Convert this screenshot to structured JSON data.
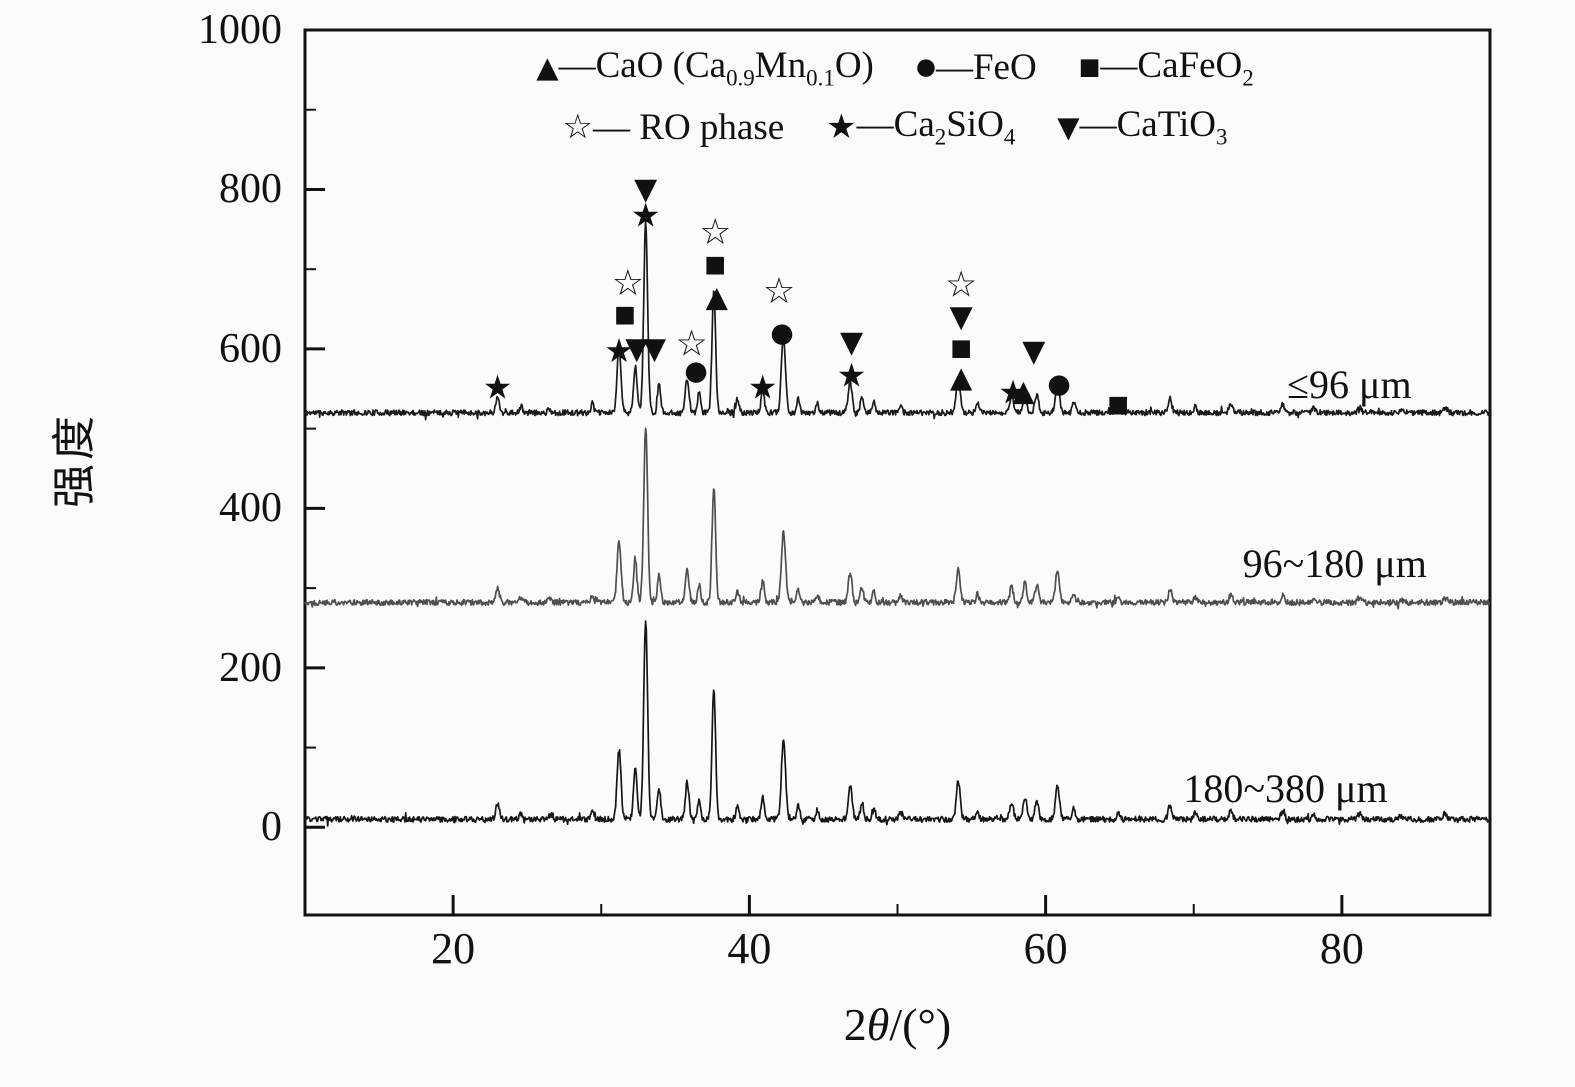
{
  "chart_data": {
    "type": "line",
    "title": "",
    "xlabel_parts": [
      "2",
      "θ",
      "/(°)"
    ],
    "ylabel": "强度",
    "xlim": [
      10,
      90
    ],
    "ylim": [
      -110,
      1000
    ],
    "x_major_ticks": [
      20,
      40,
      60,
      80
    ],
    "x_minor_ticks": [
      30,
      50,
      70
    ],
    "y_major_ticks": [
      0,
      200,
      400,
      600,
      800,
      1000
    ],
    "y_minor_ticks": [
      100,
      300,
      500,
      700,
      900
    ],
    "grid": false,
    "legend_position": "top-center",
    "legend": {
      "rows": [
        [
          {
            "marker": "▲",
            "label": "—CaO (Ca_{0.9}Mn_{0.1}O)"
          },
          {
            "marker": "●",
            "label": "—FeO"
          },
          {
            "marker": "■",
            "label": "—CaFeO_{2}"
          }
        ],
        [
          {
            "marker": "☆",
            "label": "— RO phase"
          },
          {
            "marker": "★",
            "label": "—Ca_{2}SiO_{4}"
          },
          {
            "marker": "▼",
            "label": "—CaTiO_{3}"
          }
        ]
      ]
    },
    "series": [
      {
        "name": "≤96 μm",
        "baseline": 520,
        "scale": 0.95,
        "color": "#1b1b1b",
        "seed": 11,
        "label_x": 76.3,
        "label_y": 555
      },
      {
        "name": "96~180 μm",
        "baseline": 282,
        "scale": 0.88,
        "color": "#4f4f4f",
        "seed": 22,
        "label_x": 73.3,
        "label_y": 330
      },
      {
        "name": "180~380 μm",
        "baseline": 10,
        "scale": 1.0,
        "color": "#161616",
        "seed": 33,
        "label_x": 69.3,
        "label_y": 48
      }
    ],
    "peaks_2theta_height_width": [
      [
        23.0,
        20,
        0.12
      ],
      [
        24.6,
        8,
        0.1
      ],
      [
        26.5,
        5,
        0.1
      ],
      [
        29.4,
        12,
        0.1
      ],
      [
        31.2,
        88,
        0.13
      ],
      [
        32.3,
        62,
        0.12
      ],
      [
        33.0,
        250,
        0.13
      ],
      [
        33.9,
        38,
        0.11
      ],
      [
        35.8,
        46,
        0.12
      ],
      [
        36.6,
        26,
        0.1
      ],
      [
        37.6,
        165,
        0.12
      ],
      [
        39.2,
        18,
        0.1
      ],
      [
        40.9,
        28,
        0.11
      ],
      [
        42.3,
        100,
        0.14
      ],
      [
        43.3,
        18,
        0.1
      ],
      [
        44.6,
        12,
        0.1
      ],
      [
        46.8,
        42,
        0.13
      ],
      [
        47.6,
        22,
        0.1
      ],
      [
        48.4,
        16,
        0.1
      ],
      [
        50.2,
        10,
        0.1
      ],
      [
        54.1,
        48,
        0.13
      ],
      [
        55.4,
        12,
        0.1
      ],
      [
        57.7,
        22,
        0.12
      ],
      [
        58.6,
        28,
        0.12
      ],
      [
        59.4,
        24,
        0.12
      ],
      [
        60.8,
        42,
        0.13
      ],
      [
        61.9,
        14,
        0.1
      ],
      [
        64.9,
        10,
        0.1
      ],
      [
        68.4,
        18,
        0.12
      ],
      [
        70.1,
        8,
        0.1
      ],
      [
        72.5,
        10,
        0.12
      ],
      [
        76.0,
        10,
        0.12
      ],
      [
        78.1,
        6,
        0.1
      ],
      [
        81.2,
        7,
        0.12
      ],
      [
        84.0,
        5,
        0.1
      ],
      [
        87.0,
        6,
        0.12
      ]
    ],
    "symbols": {
      "tri-up": "▲",
      "tri-down": "▼",
      "circle": "●",
      "square": "■",
      "star-open": "☆",
      "star-filled": "★"
    },
    "annotations": [
      [
        23.0,
        552,
        "star-filled"
      ],
      [
        31.2,
        598,
        "star-filled"
      ],
      [
        31.6,
        643,
        "square"
      ],
      [
        31.8,
        682,
        "star-open"
      ],
      [
        32.4,
        600,
        "tri-down"
      ],
      [
        33.0,
        800,
        "tri-down"
      ],
      [
        33.0,
        768,
        "star-filled"
      ],
      [
        33.6,
        600,
        "tri-down"
      ],
      [
        36.1,
        606,
        "star-open"
      ],
      [
        36.4,
        572,
        "circle"
      ],
      [
        37.7,
        746,
        "star-open"
      ],
      [
        37.7,
        706,
        "square"
      ],
      [
        37.8,
        666,
        "tri-up"
      ],
      [
        40.9,
        552,
        "star-filled"
      ],
      [
        42.0,
        672,
        "star-open"
      ],
      [
        42.2,
        620,
        "circle"
      ],
      [
        46.9,
        608,
        "tri-down"
      ],
      [
        46.9,
        567,
        "star-filled"
      ],
      [
        54.3,
        680,
        "star-open"
      ],
      [
        54.3,
        640,
        "tri-down"
      ],
      [
        54.3,
        601,
        "square"
      ],
      [
        54.3,
        565,
        "tri-up"
      ],
      [
        57.8,
        546,
        "star-filled"
      ],
      [
        58.5,
        548,
        "tri-up"
      ],
      [
        59.2,
        597,
        "tri-down"
      ],
      [
        60.9,
        556,
        "circle"
      ],
      [
        64.9,
        530,
        "square"
      ]
    ]
  }
}
